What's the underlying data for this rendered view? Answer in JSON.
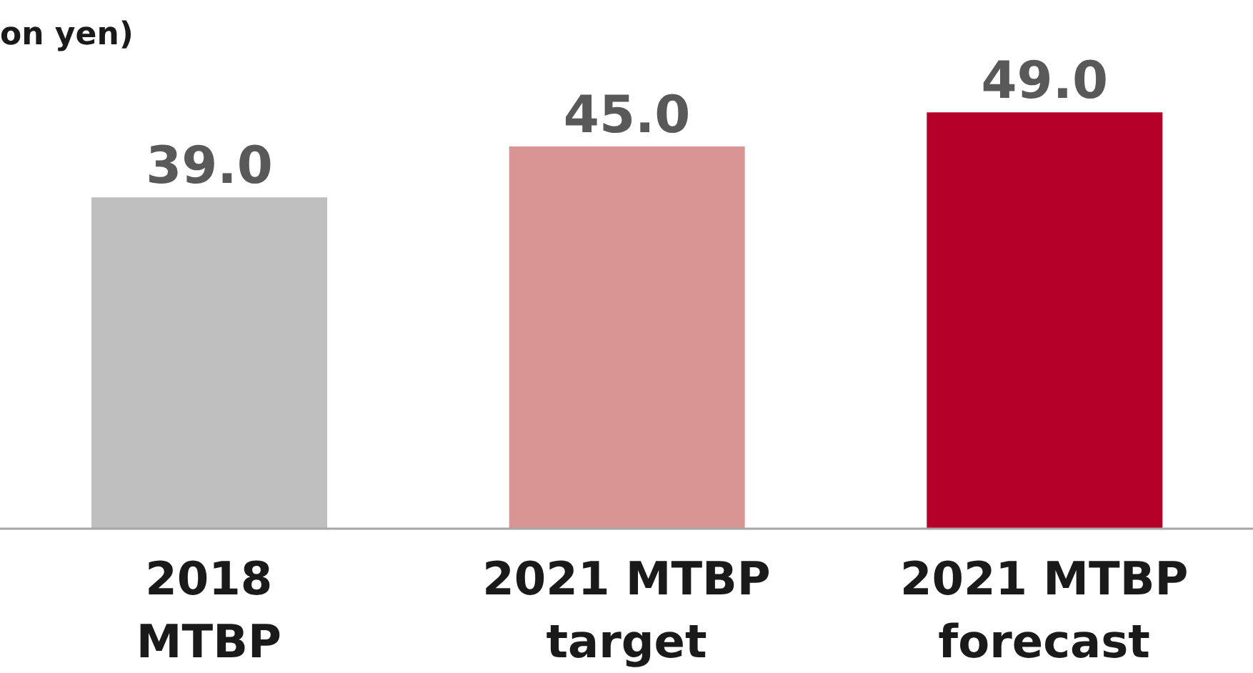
{
  "chart_data": {
    "type": "bar",
    "ylabel": "on yen)",
    "categories": [
      "2018\nMTBP",
      "2021 MTBP\ntarget",
      "2021 MTBP\nforecast"
    ],
    "values": [
      39.0,
      45.0,
      49.0
    ],
    "colors": [
      "#bfbfbf",
      "#d99594",
      "#b5002a"
    ],
    "value_labels": [
      "39.0",
      "45.0",
      "49.0"
    ]
  }
}
